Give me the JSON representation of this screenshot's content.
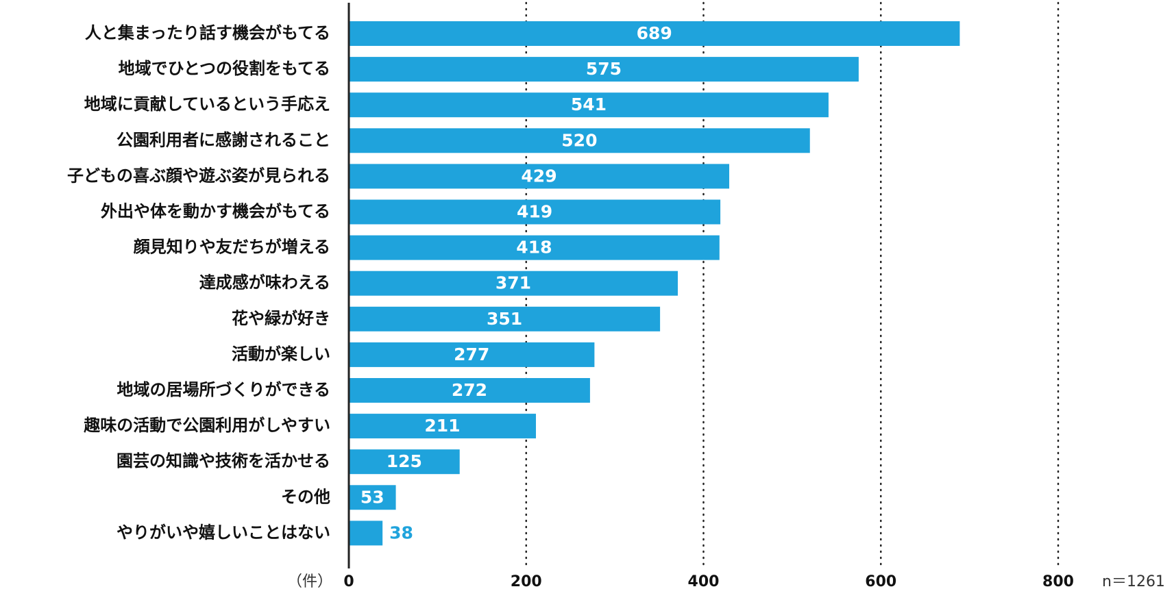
{
  "chart_data": {
    "type": "bar",
    "orientation": "horizontal",
    "categories": [
      "人と集まったり話す機会がもてる",
      "地域でひとつの役割をもてる",
      "地域に貢献しているという手応え",
      "公園利用者に感謝されること",
      "子どもの喜ぶ顔や遊ぶ姿が見られる",
      "外出や体を動かす機会がもてる",
      "顔見知りや友だちが増える",
      "達成感が味わえる",
      "花や緑が好き",
      "活動が楽しい",
      "地域の居場所づくりができる",
      "趣味の活動で公園利用がしやすい",
      "園芸の知識や技術を活かせる",
      "その他",
      "やりがいや嬉しいことはない"
    ],
    "values": [
      689,
      575,
      541,
      520,
      429,
      419,
      418,
      371,
      351,
      277,
      272,
      211,
      125,
      53,
      38
    ],
    "color": "#1fa3dc",
    "xlim": [
      0,
      800
    ],
    "xticks": [
      0,
      200,
      400,
      600,
      800
    ],
    "grid": true,
    "unit_label": "（件）",
    "note": "n＝1261"
  }
}
